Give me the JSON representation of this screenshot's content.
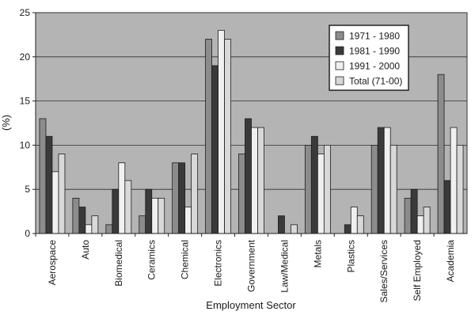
{
  "chart_data": {
    "type": "bar",
    "title": "",
    "xlabel": "Employment Sector",
    "ylabel": "(%)",
    "ylim": [
      0,
      25
    ],
    "yticks": [
      "0",
      "5",
      "10",
      "15",
      "20",
      "25"
    ],
    "grid": true,
    "legend_position": "top-right",
    "categories": [
      "Aerospace",
      "Auto",
      "Biomedical",
      "Ceramics",
      "Chemical",
      "Electronics",
      "Government",
      "Law/Medical",
      "Metals",
      "Plastics",
      "Sales/Services",
      "Self Employed",
      "Academia"
    ],
    "series": [
      {
        "name": "1971 - 1980",
        "color": "#8c8c8c",
        "values": [
          13,
          4,
          1,
          2,
          8,
          22,
          9,
          0,
          10,
          0,
          10,
          4,
          18
        ]
      },
      {
        "name": "1981 - 1990",
        "color": "#3a3a3a",
        "values": [
          11,
          3,
          5,
          5,
          8,
          19,
          13,
          2,
          11,
          1,
          12,
          5,
          6
        ]
      },
      {
        "name": "1991 - 2000",
        "color": "#f0f0f0",
        "values": [
          7,
          1,
          8,
          4,
          3,
          23,
          12,
          0,
          9,
          3,
          12,
          2,
          12
        ]
      },
      {
        "name": "Total (71-00)",
        "color": "#d8d8d8",
        "values": [
          9,
          2,
          6,
          4,
          9,
          22,
          12,
          1,
          10,
          2,
          10,
          3,
          10
        ]
      }
    ],
    "plot_background": "#b4b4b4"
  }
}
